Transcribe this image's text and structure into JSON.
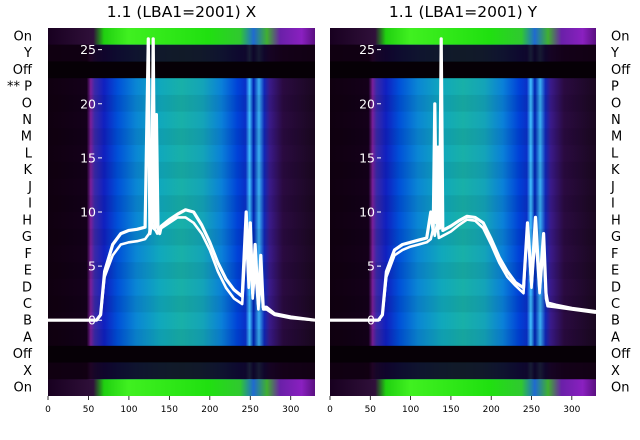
{
  "chart_data": [
    {
      "type": "heatmap",
      "title": "1.1 (LBA1=2001) X",
      "xlabel": "",
      "ylabel": "",
      "xlim": [
        0,
        330
      ],
      "x_ticks": [
        "0",
        "50",
        "100",
        "150",
        "200",
        "250",
        "300"
      ],
      "x_tick_values": [
        0,
        50,
        100,
        150,
        200,
        250,
        300
      ],
      "ylim": [
        -7,
        27
      ],
      "y_ticks": [
        "0",
        "5",
        "10",
        "15",
        "20",
        "25"
      ],
      "y_tick_values": [
        0,
        5,
        10,
        15,
        20,
        25
      ],
      "row_labels": [
        "On",
        "Y",
        "Off",
        "** P",
        "O",
        "N",
        "M",
        "L",
        "K",
        "J",
        "I",
        "H",
        "G",
        "F",
        "E",
        "D",
        "C",
        "B",
        "A",
        "Off",
        "X",
        "On"
      ],
      "series": [
        {
          "x": [
            0,
            60,
            65,
            70,
            80,
            90,
            100,
            110,
            120,
            125,
            128,
            130,
            133,
            135,
            140,
            150,
            160,
            170,
            180,
            190,
            200,
            210,
            220,
            230,
            240,
            245,
            248,
            250,
            253,
            256,
            260,
            263,
            266,
            270,
            280,
            300,
            330
          ],
          "y": [
            0,
            0,
            0.5,
            4,
            6,
            7,
            7.2,
            7.3,
            7.5,
            8,
            9,
            8.5,
            8.3,
            8,
            8.5,
            9,
            9.5,
            9.5,
            9,
            8,
            6.5,
            4.5,
            3,
            2,
            1.5,
            8,
            3,
            6,
            2,
            5,
            1,
            4,
            1,
            1,
            0.5,
            0.2,
            0
          ]
        },
        {
          "x": [
            0,
            60,
            65,
            70,
            80,
            90,
            100,
            110,
            120,
            124,
            126,
            128,
            130,
            132,
            134,
            136,
            138,
            140,
            150,
            160,
            170,
            180,
            190,
            200,
            210,
            220,
            230,
            240,
            245,
            248,
            250,
            253,
            256,
            260,
            263,
            266,
            270,
            280,
            300,
            330
          ],
          "y": [
            0,
            0,
            0.5,
            4.5,
            7,
            8,
            8.3,
            8.4,
            8.6,
            26,
            8,
            9,
            26,
            8.5,
            19,
            8.5,
            8,
            8.7,
            9.3,
            9.8,
            10.2,
            10,
            8.8,
            7.2,
            5.3,
            3.8,
            2.8,
            2.2,
            10,
            4,
            9,
            2.5,
            7,
            1.5,
            6,
            1.2,
            1.2,
            0.6,
            0.3,
            0
          ]
        }
      ]
    },
    {
      "type": "heatmap",
      "title": "1.1 (LBA1=2001) Y",
      "xlabel": "",
      "ylabel": "",
      "xlim": [
        0,
        330
      ],
      "x_ticks": [
        "0",
        "50",
        "100",
        "150",
        "200",
        "250",
        "300"
      ],
      "x_tick_values": [
        0,
        50,
        100,
        150,
        200,
        250,
        300
      ],
      "ylim": [
        -7,
        27
      ],
      "y_ticks": [
        "0",
        "5",
        "10",
        "15",
        "20",
        "25"
      ],
      "y_tick_values": [
        0,
        5,
        10,
        15,
        20,
        25
      ],
      "row_labels": [
        "On",
        "Y",
        "Off",
        "P",
        "O",
        "N",
        "M",
        "L",
        "K",
        "J",
        "I",
        "H",
        "G",
        "F",
        "E",
        "D",
        "C",
        "B",
        "A",
        "Off",
        "X",
        "On"
      ],
      "series": [
        {
          "x": [
            0,
            60,
            65,
            70,
            80,
            90,
            100,
            110,
            120,
            125,
            128,
            130,
            133,
            135,
            140,
            150,
            160,
            170,
            180,
            190,
            200,
            210,
            220,
            230,
            240,
            245,
            250,
            255,
            260,
            265,
            268,
            270,
            280,
            300,
            330
          ],
          "y": [
            0,
            0,
            0.5,
            4,
            6,
            6.5,
            6.8,
            7,
            7.2,
            7.5,
            8.5,
            7.8,
            9,
            7.6,
            7.8,
            8.2,
            8.8,
            9.3,
            9.2,
            8.5,
            7,
            5.3,
            4,
            3.2,
            2.5,
            9,
            3,
            8,
            2.5,
            7,
            2,
            1.3,
            1.2,
            1,
            0.7
          ]
        },
        {
          "x": [
            0,
            60,
            65,
            70,
            80,
            90,
            100,
            110,
            120,
            125,
            128,
            130,
            132,
            134,
            136,
            138,
            140,
            150,
            160,
            170,
            180,
            190,
            200,
            210,
            220,
            230,
            240,
            245,
            250,
            255,
            260,
            265,
            268,
            270,
            280,
            300,
            330
          ],
          "y": [
            0,
            0,
            0.5,
            4.5,
            6.5,
            7,
            7.2,
            7.4,
            7.6,
            10,
            8.2,
            20,
            9,
            16,
            8.5,
            26,
            8.3,
            8.7,
            9.2,
            9.6,
            9.5,
            9,
            7.5,
            5.8,
            4.5,
            3.5,
            3,
            9,
            3.5,
            9.5,
            3,
            8,
            2.5,
            1.6,
            1.4,
            1.1,
            0.8
          ]
        }
      ]
    }
  ]
}
